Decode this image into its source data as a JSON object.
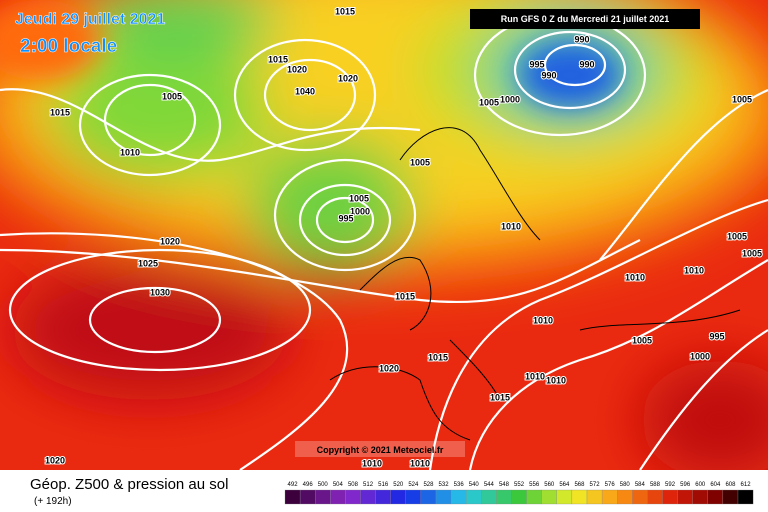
{
  "header": {
    "date": "Jeudi 29 juillet 2021",
    "time": "2:00 locale",
    "run": "Run GFS 0 Z du Mercredi 21 juillet 2021"
  },
  "copyright": "Copyright © 2021 Meteociel.fr",
  "footer": {
    "title": "Géop. Z500 & pression au sol",
    "lead": "(+ 192h)"
  },
  "colorbar": {
    "labels": [
      492,
      496,
      500,
      504,
      508,
      512,
      516,
      520,
      524,
      528,
      532,
      536,
      540,
      544,
      548,
      552,
      556,
      560,
      564,
      568,
      572,
      576,
      580,
      584,
      588,
      592,
      596,
      600,
      604,
      608,
      612
    ]
  },
  "isobars": {
    "labels": [
      "1015",
      "1005",
      "1015",
      "1010",
      "1020",
      "1020",
      "1015",
      "1040",
      "990",
      "995",
      "990",
      "990",
      "1005",
      "1000",
      "1005",
      "1005",
      "1005",
      "1000",
      "995",
      "1010",
      "1020",
      "1025",
      "1030",
      "1015",
      "1010",
      "1010",
      "1005",
      "1005",
      "1010",
      "995",
      "1005",
      "1000",
      "1015",
      "1020",
      "1015",
      "1010",
      "1010",
      "1020",
      "1010",
      "1010"
    ]
  }
}
